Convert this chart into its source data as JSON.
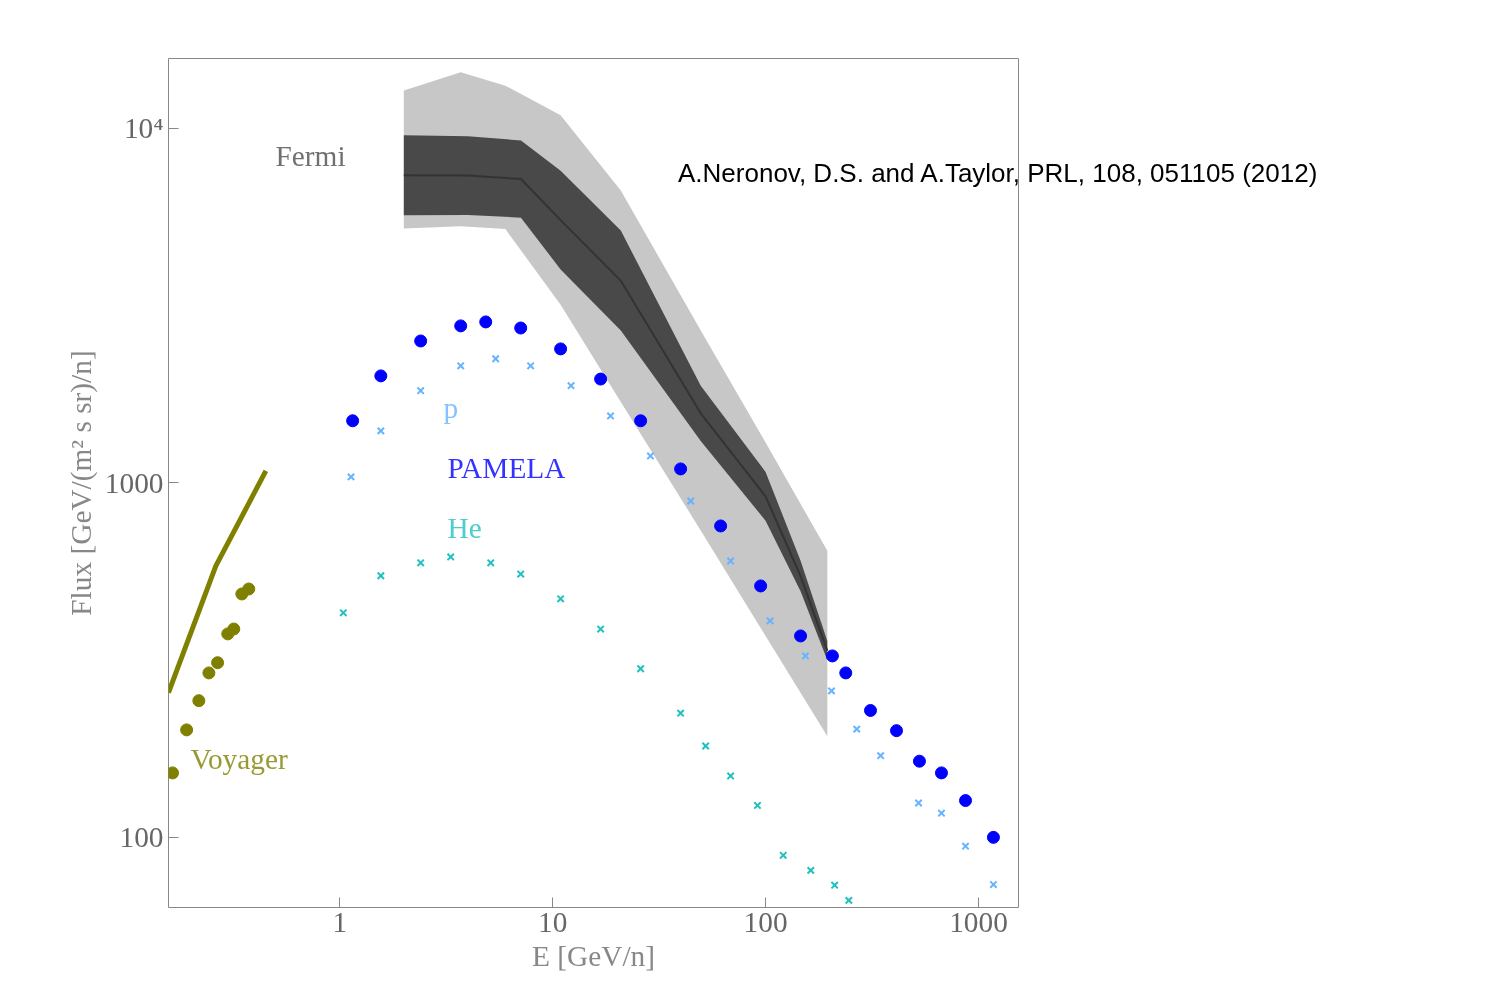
{
  "chart_data": {
    "type": "scatter",
    "xlabel": "E [GeV/n]",
    "ylabel": "Flux [GeV/(m² s sr)/n]",
    "log": "xy",
    "grid": false,
    "legend": false,
    "xlim": [
      0.157,
      1541
    ],
    "ylim": [
      63.4,
      15750
    ],
    "xticks": [
      1,
      10,
      100,
      1000
    ],
    "yticks": [
      100,
      1000,
      {
        "value": 10000,
        "label": "10⁴"
      }
    ],
    "series": [
      {
        "type": "line",
        "color": "#b4b4b4",
        "x": [
          2,
          3.7,
          6,
          10.9,
          20.9,
          50,
          100,
          195
        ],
        "values": [
          null,
          null,
          null,
          null,
          null,
          null,
          null,
          null
        ],
        "lower": [
          5220,
          5300,
          5200,
          3180,
          1692,
          728,
          370,
          193
        ],
        "upper": [
          12800,
          14400,
          13200,
          10900,
          6680,
          2670,
          1300,
          643
        ]
      },
      {
        "name": "Fermi",
        "type": "line",
        "color": "#333333",
        "x": [
          2,
          4,
          7.1,
          10.9,
          20.9,
          49.6,
          100,
          146,
          195
        ],
        "values": [
          7380,
          7360,
          7200,
          5510,
          3720,
          1571,
          916,
          546,
          336
        ],
        "lower": [
          5690,
          5700,
          5600,
          4000,
          2690,
          1313,
          782,
          495,
          316
        ],
        "upper": [
          9560,
          9500,
          9250,
          7600,
          5150,
          1880,
          1074,
          603,
          358
        ]
      },
      {
        "type": "line",
        "color": "#808000",
        "x": [
          0.157,
          0.262,
          0.45
        ],
        "values": [
          256,
          583,
          1081
        ]
      },
      {
        "name": "Voyager",
        "marker": "circle",
        "color": "#808000",
        "x": [
          0.164,
          0.191,
          0.218,
          0.243,
          0.267,
          0.298,
          0.318,
          0.347,
          0.374
        ],
        "values": [
          152,
          201,
          243,
          291,
          311,
          375,
          387,
          486,
          502
        ]
      },
      {
        "name": "PAMELA",
        "marker": "circle",
        "color": "#0000ff",
        "x": [
          1.15,
          1.56,
          2.4,
          3.7,
          4.85,
          7.08,
          10.9,
          16.8,
          25.9,
          39.9,
          61.5,
          94.8,
          146,
          206,
          238,
          311,
          412,
          528,
          670,
          869,
          1175
        ],
        "values": [
          1497,
          2004,
          2514,
          2773,
          2845,
          2735,
          2388,
          1963,
          1497,
          1095,
          756,
          512,
          370,
          325,
          291,
          228,
          200,
          164,
          152,
          127,
          100
        ]
      },
      {
        "name": "p",
        "marker": "cross",
        "color": "#66b3ff",
        "x": [
          1.13,
          1.56,
          2.4,
          3.7,
          5.4,
          7.88,
          12.2,
          18.7,
          28.8,
          44.5,
          68.5,
          105,
          154,
          204,
          268,
          347,
          523,
          670,
          869,
          1175
        ],
        "values": [
          1040,
          1402,
          1820,
          2140,
          2240,
          2140,
          1880,
          1545,
          1191,
          889,
          602,
          408,
          325,
          259,
          202,
          170,
          125,
          117,
          94.4,
          73.6
        ]
      },
      {
        "name": "He",
        "marker": "cross",
        "color": "#20c0c0",
        "x": [
          1.04,
          1.56,
          2.4,
          3.32,
          5.12,
          7.08,
          10.9,
          16.8,
          25.9,
          39.9,
          52.3,
          68.5,
          91.6,
          121,
          163,
          211,
          246
        ],
        "values": [
          430,
          547,
          595,
          618,
          595,
          553,
          471,
          387,
          299,
          224,
          181,
          149,
          123,
          89,
          80.7,
          73.3,
          66.4
        ]
      }
    ],
    "annotations": [
      "A.Neronov, D.S. and A.Taylor,  PRL, 108, 051105 (2012)"
    ]
  }
}
